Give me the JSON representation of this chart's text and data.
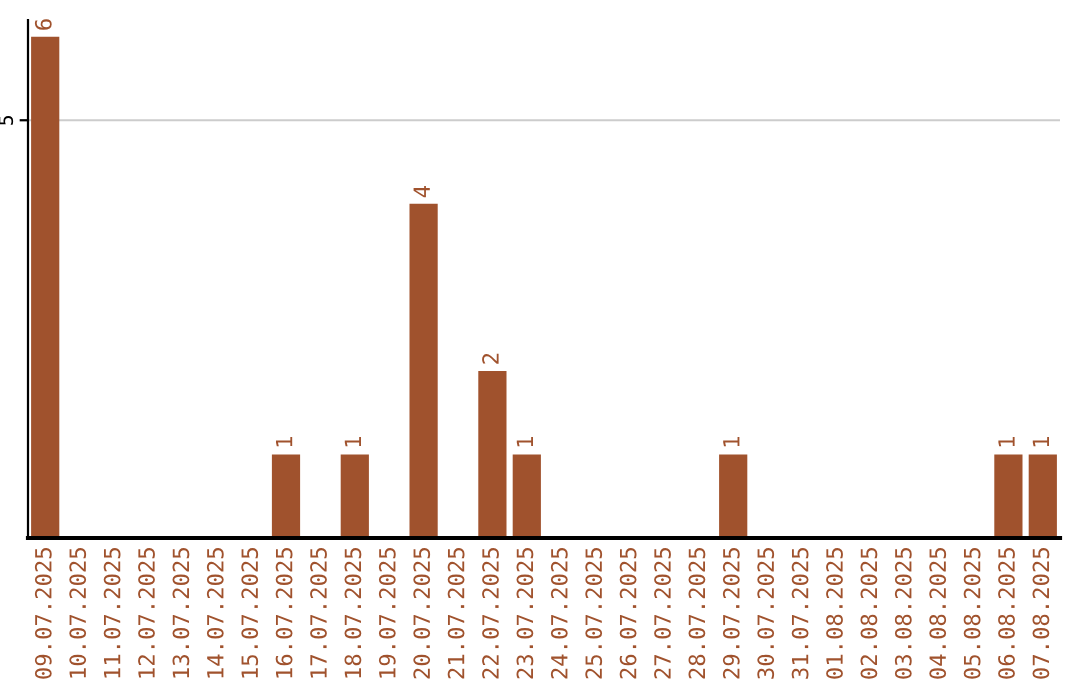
{
  "chart_data": {
    "type": "bar",
    "categories": [
      "09.07.2025",
      "10.07.2025",
      "11.07.2025",
      "12.07.2025",
      "13.07.2025",
      "14.07.2025",
      "15.07.2025",
      "16.07.2025",
      "17.07.2025",
      "18.07.2025",
      "19.07.2025",
      "20.07.2025",
      "21.07.2025",
      "22.07.2025",
      "23.07.2025",
      "24.07.2025",
      "25.07.2025",
      "26.07.2025",
      "27.07.2025",
      "28.07.2025",
      "29.07.2025",
      "30.07.2025",
      "31.07.2025",
      "01.08.2025",
      "02.08.2025",
      "03.08.2025",
      "04.08.2025",
      "05.08.2025",
      "06.08.2025",
      "07.08.2025"
    ],
    "values": [
      6,
      0,
      0,
      0,
      0,
      0,
      0,
      1,
      0,
      1,
      0,
      4,
      0,
      2,
      1,
      0,
      0,
      0,
      0,
      0,
      1,
      0,
      0,
      0,
      0,
      0,
      0,
      0,
      1,
      1
    ],
    "value_labels": [
      "6",
      null,
      null,
      null,
      null,
      null,
      null,
      "1",
      null,
      "1",
      null,
      "4",
      null,
      "2",
      "1",
      null,
      null,
      null,
      null,
      null,
      "1",
      null,
      null,
      null,
      null,
      null,
      null,
      null,
      "1",
      "1"
    ],
    "color": "#a0522d",
    "ylim": [
      0,
      6.2
    ],
    "yticks": [
      5
    ],
    "grid": "y",
    "legend": false
  }
}
